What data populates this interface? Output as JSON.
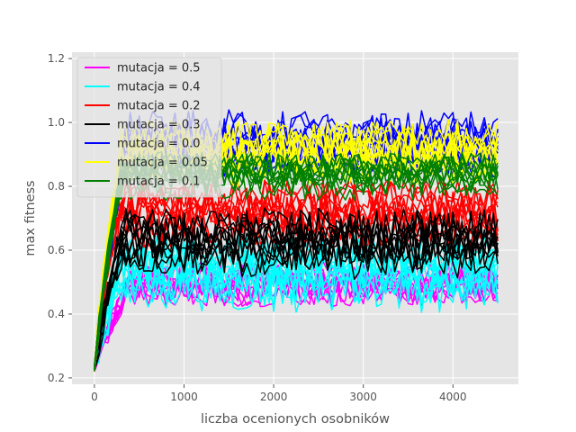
{
  "chart_data": {
    "type": "line",
    "style": "ggplot",
    "title": "",
    "xlabel": "liczba ocenionych osobników",
    "ylabel": "max fitness",
    "xlim": [
      -250,
      4730
    ],
    "ylim": [
      0.18,
      1.22
    ],
    "xticks": [
      0,
      1000,
      2000,
      3000,
      4000
    ],
    "xtick_labels": [
      "0",
      "1000",
      "2000",
      "3000",
      "4000"
    ],
    "yticks": [
      0.2,
      0.4,
      0.6,
      0.8,
      1.0,
      1.2
    ],
    "ytick_labels": [
      "0.2",
      "0.4",
      "0.6",
      "0.8",
      "1.0",
      "1.2"
    ],
    "grid": true,
    "legend_position": "upper-left",
    "x_max": 4500,
    "x_step": 50,
    "runs_per_series": 10,
    "series": [
      {
        "name": "mutacja = 0.5",
        "color": "#ff00ff",
        "start": 0.22,
        "rise_end": 400,
        "plateau": 0.5,
        "noise": 0.05,
        "max": 0.68
      },
      {
        "name": "mutacja = 0.4",
        "color": "#00ffff",
        "start": 0.22,
        "rise_end": 300,
        "plateau": 0.53,
        "noise": 0.09,
        "max": 0.9
      },
      {
        "name": "mutacja = 0.2",
        "color": "#ff0000",
        "start": 0.22,
        "rise_end": 250,
        "plateau": 0.72,
        "noise": 0.07,
        "max": 0.9
      },
      {
        "name": "mutacja = 0.3",
        "color": "#000000",
        "start": 0.22,
        "rise_end": 300,
        "plateau": 0.63,
        "noise": 0.08,
        "max": 0.9
      },
      {
        "name": "mutacja = 0.0",
        "color": "#0000ff",
        "start": 0.22,
        "rise_end": 350,
        "plateau": 0.93,
        "noise": 0.07,
        "max": 1.16
      },
      {
        "name": "mutacja = 0.05",
        "color": "#ffff00",
        "start": 0.22,
        "rise_end": 300,
        "plateau": 0.91,
        "noise": 0.07,
        "max": 1.13
      },
      {
        "name": "mutacja = 0.1",
        "color": "#008000",
        "start": 0.22,
        "rise_end": 300,
        "plateau": 0.83,
        "noise": 0.05,
        "max": 0.96
      }
    ]
  }
}
